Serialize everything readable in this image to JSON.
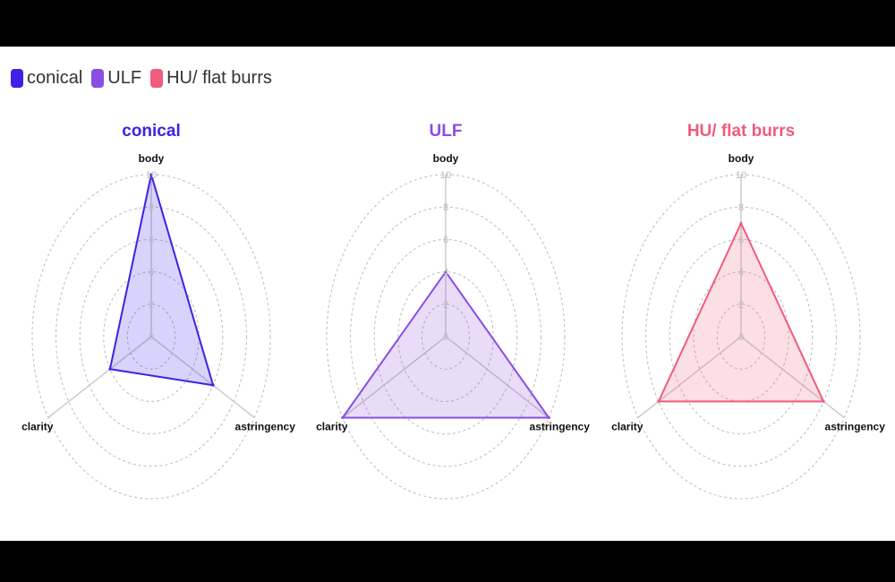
{
  "chart_data": [
    {
      "type": "radar",
      "title": "conical",
      "axes": [
        "body",
        "astringency",
        "clarity"
      ],
      "values": [
        10,
        6,
        4
      ],
      "rlim": [
        0,
        10
      ],
      "ticks": [
        "0",
        "2",
        "4",
        "6",
        "8",
        "10"
      ],
      "color": "#3d22e6"
    },
    {
      "type": "radar",
      "title": "ULF",
      "axes": [
        "body",
        "astringency",
        "clarity"
      ],
      "values": [
        4,
        10,
        10
      ],
      "rlim": [
        0,
        10
      ],
      "ticks": [
        "0",
        "2",
        "4",
        "6",
        "8",
        "10"
      ],
      "color": "#8a4ee3"
    },
    {
      "type": "radar",
      "title": "HU/ flat burrs",
      "axes": [
        "body",
        "astringency",
        "clarity"
      ],
      "values": [
        7,
        8,
        8
      ],
      "rlim": [
        0,
        10
      ],
      "ticks": [
        "0",
        "2",
        "4",
        "6",
        "8",
        "10"
      ],
      "color": "#f05c7c"
    }
  ],
  "legend": [
    {
      "label": "conical",
      "color": "#3d22e6"
    },
    {
      "label": "ULF",
      "color": "#8a4ee3"
    },
    {
      "label": "HU/ flat burrs",
      "color": "#f05c7c"
    }
  ]
}
